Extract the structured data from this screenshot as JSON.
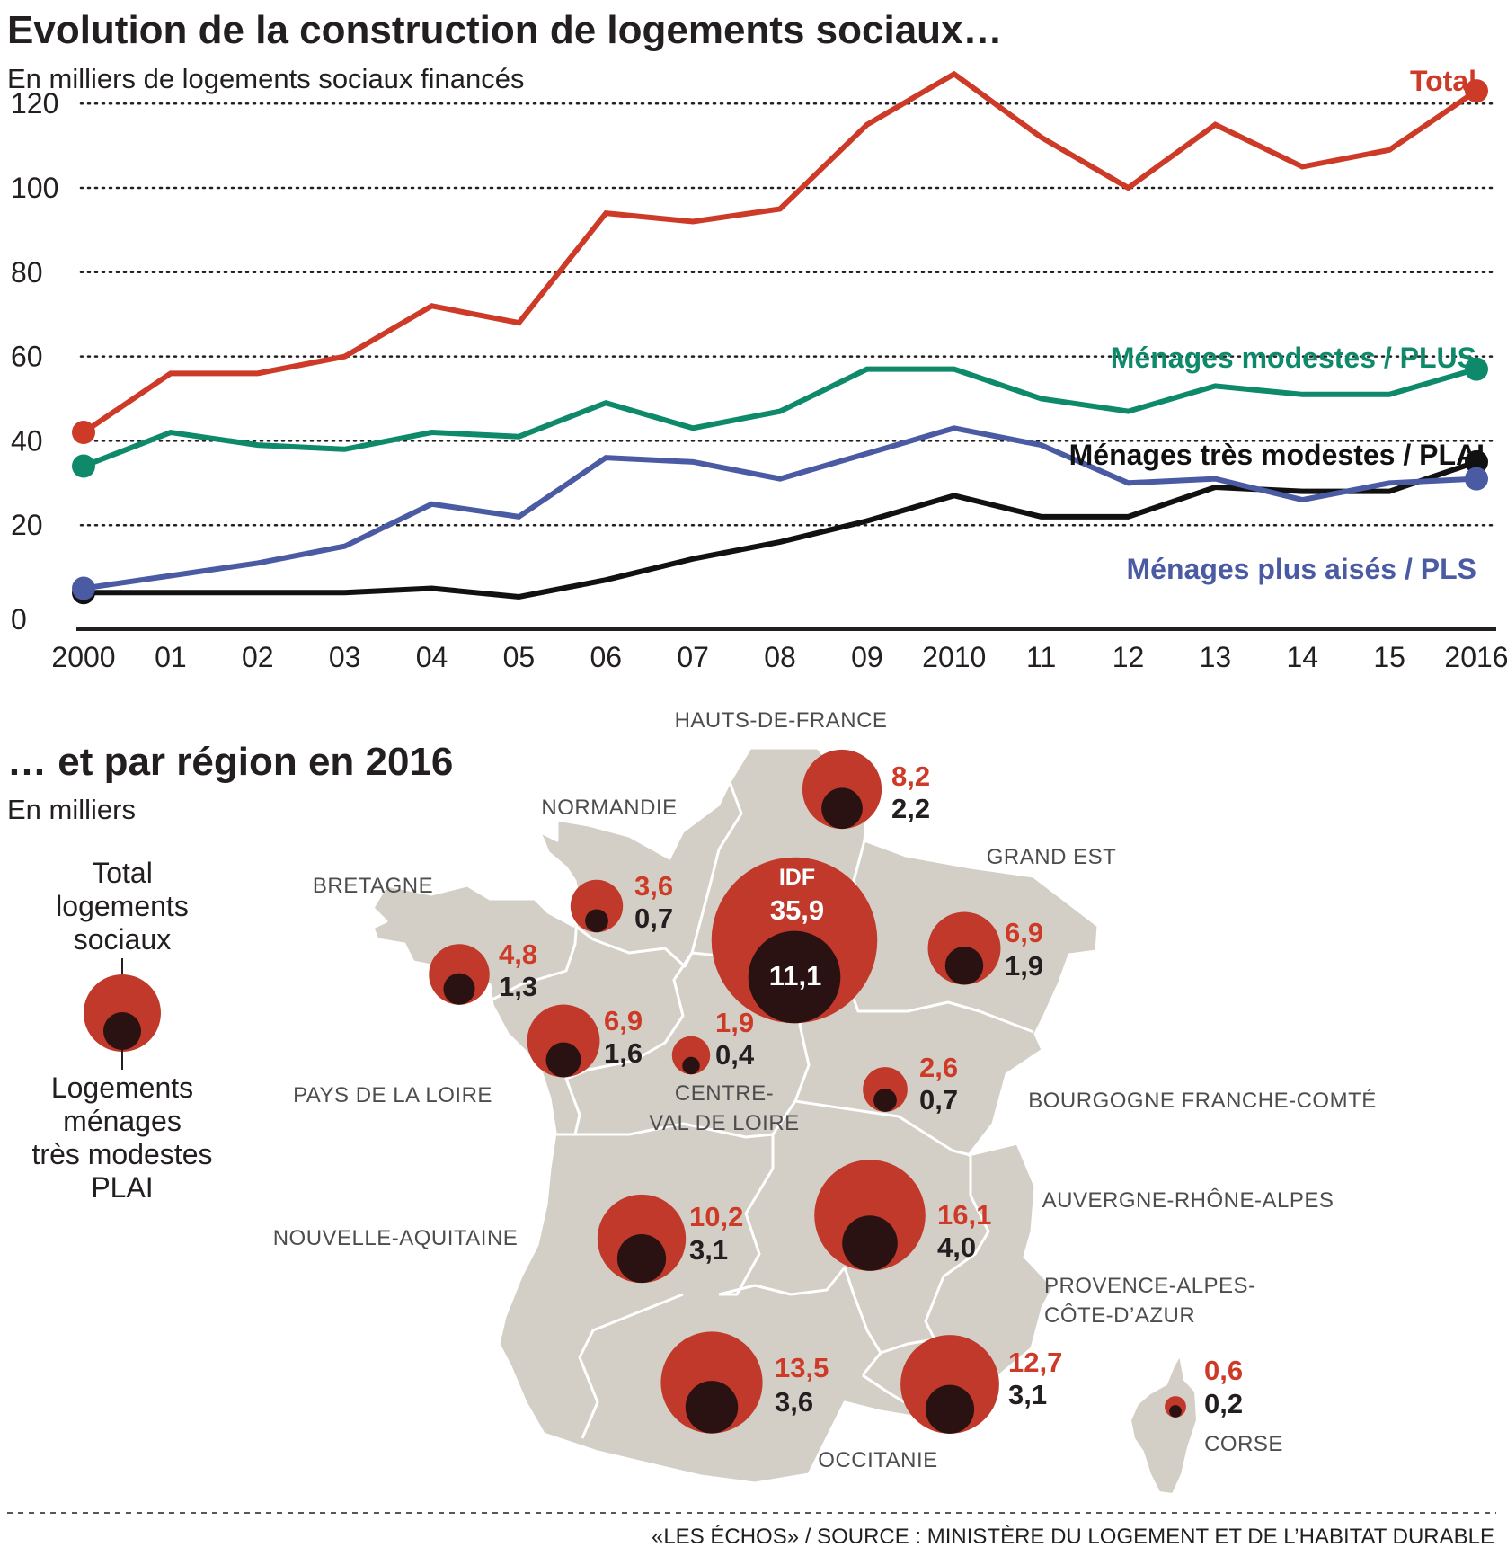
{
  "header": {
    "title": "Evolution de la construction de logements sociaux…",
    "subtitle": "En milliers de logements sociaux financés"
  },
  "map_header": {
    "title": "… et par région en 2016",
    "subtitle": "En milliers"
  },
  "legend": {
    "total_lines": [
      "Total",
      "logements",
      "sociaux"
    ],
    "plai_lines": [
      "Logements",
      "ménages",
      "très modestes",
      "PLAI"
    ]
  },
  "source": "«LES ÉCHOS» / SOURCE : MINISTÈRE DU LOGEMENT ET DE L’HABITAT DURABLE",
  "colors": {
    "total": "#cd3a27",
    "plus": "#0e8a6a",
    "plai": "#111111",
    "pls": "#4a5aa3",
    "map_land": "#d3cfc6",
    "bubble_total": "#c0392b",
    "bubble_plai": "#2b1212"
  },
  "chart_data": [
    {
      "type": "line",
      "title": "Evolution de la construction de logements sociaux…",
      "subtitle": "En milliers de logements sociaux financés",
      "x_tick_labels": [
        "2000",
        "01",
        "02",
        "03",
        "04",
        "05",
        "06",
        "07",
        "08",
        "09",
        "2010",
        "11",
        "12",
        "13",
        "14",
        "15",
        "2016"
      ],
      "x": [
        2000,
        2001,
        2002,
        2003,
        2004,
        2005,
        2006,
        2007,
        2008,
        2009,
        2010,
        2011,
        2012,
        2013,
        2014,
        2015,
        2016
      ],
      "ylim": [
        0,
        125
      ],
      "yticks": [
        0,
        20,
        40,
        60,
        80,
        100,
        120
      ],
      "grid": "dotted horizontal",
      "series": [
        {
          "name": "Total",
          "color": "#cd3a27",
          "values": [
            42,
            56,
            56,
            60,
            72,
            68,
            94,
            92,
            95,
            115,
            127,
            112,
            100,
            115,
            105,
            109,
            123
          ]
        },
        {
          "name": "Ménages modestes / PLUS",
          "color": "#0e8a6a",
          "values": [
            34,
            42,
            39,
            38,
            42,
            41,
            49,
            43,
            47,
            57,
            57,
            50,
            47,
            53,
            51,
            51,
            57
          ]
        },
        {
          "name": "Ménages très modestes / PLAI",
          "color": "#111111",
          "values": [
            4,
            4,
            4,
            4,
            5,
            3,
            7,
            12,
            16,
            21,
            27,
            22,
            22,
            29,
            28,
            28,
            35
          ]
        },
        {
          "name": "Ménages plus aisés / PLS",
          "color": "#4a5aa3",
          "values": [
            5,
            8,
            11,
            15,
            25,
            22,
            36,
            35,
            31,
            37,
            43,
            39,
            30,
            31,
            26,
            30,
            31
          ]
        }
      ]
    },
    {
      "type": "bubble-map",
      "title": "… et par région en 2016",
      "subtitle": "En milliers",
      "regions": [
        {
          "name": "HAUTS-DE-FRANCE",
          "total": "8,2",
          "plai": "2,2",
          "total_value": 8.2,
          "plai_value": 2.2
        },
        {
          "name": "NORMANDIE",
          "total": "3,6",
          "plai": "0,7",
          "total_value": 3.6,
          "plai_value": 0.7
        },
        {
          "name": "IDF",
          "total": "35,9",
          "plai": "11,1",
          "total_value": 35.9,
          "plai_value": 11.1
        },
        {
          "name": "GRAND EST",
          "total": "6,9",
          "plai": "1,9",
          "total_value": 6.9,
          "plai_value": 1.9
        },
        {
          "name": "BRETAGNE",
          "total": "4,8",
          "plai": "1,3",
          "total_value": 4.8,
          "plai_value": 1.3
        },
        {
          "name": "PAYS DE LA LOIRE",
          "total": "6,9",
          "plai": "1,6",
          "total_value": 6.9,
          "plai_value": 1.6
        },
        {
          "name": "CENTRE-VAL DE LOIRE",
          "line1": "CENTRE-",
          "line2": "VAL DE LOIRE",
          "total": "1,9",
          "plai": "0,4",
          "total_value": 1.9,
          "plai_value": 0.4
        },
        {
          "name": "BOURGOGNE FRANCHE-COMTÉ",
          "total": "2,6",
          "plai": "0,7",
          "total_value": 2.6,
          "plai_value": 0.7
        },
        {
          "name": "NOUVELLE-AQUITAINE",
          "total": "10,2",
          "plai": "3,1",
          "total_value": 10.2,
          "plai_value": 3.1
        },
        {
          "name": "AUVERGNE-RHÔNE-ALPES",
          "total": "16,1",
          "plai": "4,0",
          "total_value": 16.1,
          "plai_value": 4.0
        },
        {
          "name": "PROVENCE-ALPES-CÔTE-D’AZUR",
          "line1": "PROVENCE-ALPES-",
          "line2": "CÔTE-D’AZUR",
          "total": "12,7",
          "plai": "3,1",
          "total_value": 12.7,
          "plai_value": 3.1
        },
        {
          "name": "OCCITANIE",
          "total": "13,5",
          "plai": "3,6",
          "total_value": 13.5,
          "plai_value": 3.6
        },
        {
          "name": "CORSE",
          "total": "0,6",
          "plai": "0,2",
          "total_value": 0.6,
          "plai_value": 0.2
        }
      ]
    }
  ]
}
